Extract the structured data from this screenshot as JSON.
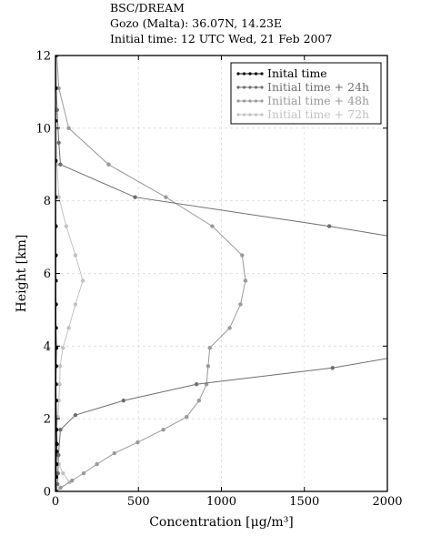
{
  "header": {
    "line1": "BSC/DREAM",
    "line2": "Gozo (Malta): 36.07N, 14.23E",
    "line3": "Initial time: 12 UTC Wed, 21 Feb 2007"
  },
  "chart_data": {
    "type": "line",
    "title": "",
    "xlabel": "Concentration [μg/m³]",
    "ylabel": "Height [km]",
    "xlim": [
      0,
      2000
    ],
    "ylim": [
      0,
      12
    ],
    "xticks": [
      0,
      500,
      1000,
      1500,
      2000
    ],
    "yticks": [
      0,
      2,
      4,
      6,
      8,
      10,
      12
    ],
    "grid": true,
    "legend_position": "top-right",
    "series": [
      {
        "name": "Inital time",
        "color": "#000000",
        "points": [
          [
            2,
            0
          ],
          [
            4,
            0.4
          ],
          [
            5,
            0.75
          ],
          [
            6,
            1.1
          ],
          [
            8,
            1.3
          ],
          [
            6,
            1.7
          ],
          [
            4,
            2.5
          ],
          [
            3,
            2.95
          ],
          [
            4,
            3.45
          ],
          [
            5,
            3.95
          ],
          [
            3,
            4.5
          ],
          [
            3,
            5.15
          ],
          [
            2,
            5.8
          ],
          [
            2,
            6.5
          ],
          [
            2,
            7.3
          ],
          [
            1,
            8.1
          ],
          [
            1,
            9.1
          ],
          [
            0,
            10.2
          ],
          [
            0,
            11.1
          ],
          [
            0,
            12
          ]
        ]
      },
      {
        "name": "Initial time + 24h",
        "color": "#6e6e6e",
        "points": [
          [
            5,
            0
          ],
          [
            12,
            0.2
          ],
          [
            15,
            0.5
          ],
          [
            18,
            1.0
          ],
          [
            30,
            1.7
          ],
          [
            120,
            2.1
          ],
          [
            410,
            2.5
          ],
          [
            850,
            2.95
          ],
          [
            1670,
            3.4
          ],
          [
            2050,
            3.7
          ]
        ],
        "points_upper": [
          [
            2050,
            7.0
          ],
          [
            1650,
            7.3
          ],
          [
            480,
            8.1
          ],
          [
            30,
            9.0
          ],
          [
            20,
            9.6
          ],
          [
            10,
            10.5
          ],
          [
            5,
            11.1
          ],
          [
            3,
            12
          ]
        ]
      },
      {
        "name": "Initial time + 48h",
        "color": "#9a9a9a",
        "points": [
          [
            5,
            0
          ],
          [
            30,
            0.1
          ],
          [
            100,
            0.3
          ],
          [
            170,
            0.5
          ],
          [
            250,
            0.75
          ],
          [
            355,
            1.05
          ],
          [
            495,
            1.35
          ],
          [
            650,
            1.7
          ],
          [
            790,
            2.05
          ],
          [
            865,
            2.5
          ],
          [
            910,
            2.95
          ],
          [
            920,
            3.45
          ],
          [
            930,
            3.95
          ],
          [
            1050,
            4.5
          ],
          [
            1115,
            5.15
          ],
          [
            1145,
            5.8
          ],
          [
            1125,
            6.5
          ],
          [
            945,
            7.3
          ],
          [
            665,
            8.1
          ],
          [
            320,
            9.0
          ],
          [
            80,
            10.0
          ],
          [
            20,
            11.1
          ],
          [
            8,
            12
          ]
        ]
      },
      {
        "name": "Initial time + 72h",
        "color": "#c2c2c2",
        "points": [
          [
            5,
            0
          ],
          [
            85,
            0.25
          ],
          [
            45,
            0.5
          ],
          [
            20,
            0.75
          ],
          [
            10,
            1.05
          ],
          [
            5,
            1.35
          ],
          [
            3,
            1.7
          ],
          [
            15,
            2.05
          ],
          [
            20,
            2.5
          ],
          [
            25,
            2.95
          ],
          [
            28,
            3.45
          ],
          [
            45,
            3.95
          ],
          [
            80,
            4.5
          ],
          [
            120,
            5.15
          ],
          [
            165,
            5.8
          ],
          [
            120,
            6.5
          ],
          [
            65,
            7.3
          ],
          [
            20,
            8.1
          ],
          [
            10,
            9.0
          ],
          [
            5,
            10.0
          ],
          [
            3,
            11.1
          ],
          [
            2,
            12
          ]
        ]
      }
    ]
  }
}
